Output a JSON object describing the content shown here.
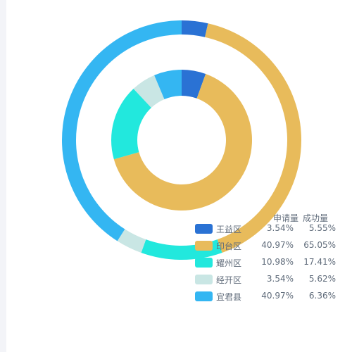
{
  "chart_data": {
    "type": "pie",
    "categories": [
      "王益区",
      "印台区",
      "耀州区",
      "经开区",
      "宜君县"
    ],
    "colors": [
      "#2a72d4",
      "#e8bb5b",
      "#22e8dd",
      "#c9e6e4",
      "#34b6f2"
    ],
    "series": [
      {
        "name": "申请量",
        "values": [
          3.54,
          40.97,
          10.98,
          3.54,
          40.97
        ],
        "ring": "outer"
      },
      {
        "name": "成功量",
        "values": [
          5.55,
          65.05,
          17.41,
          5.62,
          6.36
        ],
        "ring": "inner"
      }
    ],
    "labels": {
      "申请量": [
        "3.54%",
        "40.97%",
        "10.98%",
        "3.54%",
        "40.97%"
      ],
      "成功量": [
        "5.55%",
        "65.05%",
        "17.41%",
        "5.62%",
        "6.36%"
      ]
    }
  },
  "legend": {
    "header_apply": "申请量",
    "header_success": "成功量"
  }
}
